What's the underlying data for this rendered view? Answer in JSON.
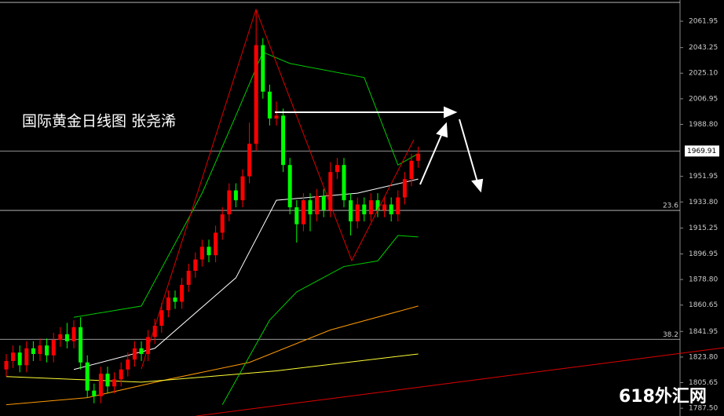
{
  "chart_data": {
    "type": "candlestick",
    "annotation": "国际黄金日线图  张尧浠",
    "watermark": "618外汇网",
    "up_color": "#ff0000",
    "down_color": "#00ff00",
    "ylim": [
      1782,
      2077
    ],
    "yticks": [
      2061.95,
      2043.25,
      {
        "value": 2025.1,
        "label": "2025.10"
      },
      2006.95,
      {
        "value": 1988.8,
        "label": "1988.80"
      },
      1951.95,
      {
        "value": 1933.8,
        "label": "1933.80"
      },
      1915.25,
      1896.95,
      {
        "value": 1878.8,
        "label": "1878.80"
      },
      1860.65,
      1841.95,
      {
        "value": 1823.8,
        "label": "1823.80"
      },
      1805.65,
      {
        "value": 1787.5,
        "label": "1787.50"
      }
    ],
    "last_price": 1969.91,
    "levels": [
      {
        "price": 1927.8,
        "ratio": 23.6
      },
      {
        "price": 1836.4,
        "ratio": 38.2
      }
    ],
    "hlines": [
      2075.3
    ],
    "open": [
      1815,
      1821,
      1827,
      1818,
      1830,
      1826,
      1832,
      1825,
      1836,
      1840,
      1835,
      1845,
      1820,
      1800,
      1796,
      1812,
      1803,
      1808,
      1815,
      1822,
      1830,
      1826,
      1838,
      1846,
      1857,
      1866,
      1863,
      1875,
      1885,
      1893,
      1902,
      1896,
      1912,
      1925,
      1942,
      1935,
      1952,
      1975,
      2045,
      2012,
      1993,
      1995,
      1960,
      1930,
      1918,
      1935,
      1925,
      1938,
      1928,
      1955,
      1960,
      1935,
      1920,
      1932,
      1925,
      1935,
      1928,
      1932,
      1925,
      1937,
      1950,
      1963
    ],
    "high": [
      1826,
      1832,
      1832,
      1835,
      1835,
      1837,
      1837,
      1841,
      1845,
      1848,
      1850,
      1852,
      1825,
      1805,
      1817,
      1817,
      1813,
      1820,
      1827,
      1835,
      1835,
      1843,
      1851,
      1862,
      1871,
      1871,
      1880,
      1890,
      1898,
      1907,
      1907,
      1917,
      1930,
      1947,
      1947,
      1957,
      1990,
      2070,
      2050,
      2017,
      2005,
      2000,
      1965,
      1935,
      1940,
      1940,
      1943,
      1943,
      1962,
      1965,
      1965,
      1940,
      1937,
      1937,
      1940,
      1940,
      1937,
      1937,
      1942,
      1955,
      1968,
      1973
    ],
    "low": [
      1810,
      1816,
      1813,
      1813,
      1821,
      1821,
      1820,
      1820,
      1831,
      1830,
      1830,
      1815,
      1795,
      1791,
      1791,
      1798,
      1798,
      1803,
      1810,
      1817,
      1821,
      1821,
      1833,
      1841,
      1852,
      1858,
      1858,
      1870,
      1880,
      1888,
      1891,
      1891,
      1907,
      1920,
      1930,
      1930,
      1947,
      1970,
      2007,
      1988,
      1988,
      1955,
      1925,
      1905,
      1913,
      1913,
      1920,
      1923,
      1923,
      1950,
      1930,
      1910,
      1915,
      1920,
      1920,
      1923,
      1923,
      1920,
      1920,
      1932,
      1945,
      1958
    ],
    "close": [
      1821,
      1827,
      1818,
      1830,
      1826,
      1832,
      1825,
      1836,
      1840,
      1835,
      1845,
      1820,
      1800,
      1796,
      1812,
      1803,
      1808,
      1815,
      1822,
      1830,
      1826,
      1838,
      1846,
      1857,
      1866,
      1863,
      1875,
      1885,
      1893,
      1902,
      1896,
      1912,
      1925,
      1942,
      1935,
      1952,
      1975,
      2045,
      2012,
      1993,
      1995,
      1960,
      1930,
      1918,
      1935,
      1925,
      1938,
      1928,
      1955,
      1960,
      1935,
      1920,
      1932,
      1925,
      1935,
      1928,
      1932,
      1925,
      1937,
      1950,
      1963,
      1968
    ],
    "overlays": [
      {
        "color": "#ff9900",
        "x": [
          0,
          12,
          24,
          36,
          48,
          61
        ],
        "values": [
          1790,
          1795,
          1808,
          1820,
          1843,
          1860
        ]
      },
      {
        "color": "#ffff33",
        "x": [
          0,
          20,
          40,
          61
        ],
        "values": [
          1810,
          1806,
          1814,
          1826
        ]
      },
      {
        "color": "#00cc00",
        "x": [
          10,
          20,
          29,
          34,
          38,
          42,
          53,
          58,
          61
        ],
        "values": [
          1852,
          1860,
          1940,
          1995,
          2040,
          2032,
          2022,
          1960,
          1968
        ]
      },
      {
        "color": "#00cc00",
        "x": [
          32,
          39,
          43,
          50,
          55,
          58,
          61
        ],
        "values": [
          1790,
          1850,
          1870,
          1888,
          1892,
          1910,
          1909
        ]
      },
      {
        "color": "#ffffff",
        "x": [
          10,
          22,
          34,
          40,
          52,
          61
        ],
        "values": [
          1815,
          1830,
          1880,
          1935,
          1940,
          1950
        ]
      }
    ]
  }
}
